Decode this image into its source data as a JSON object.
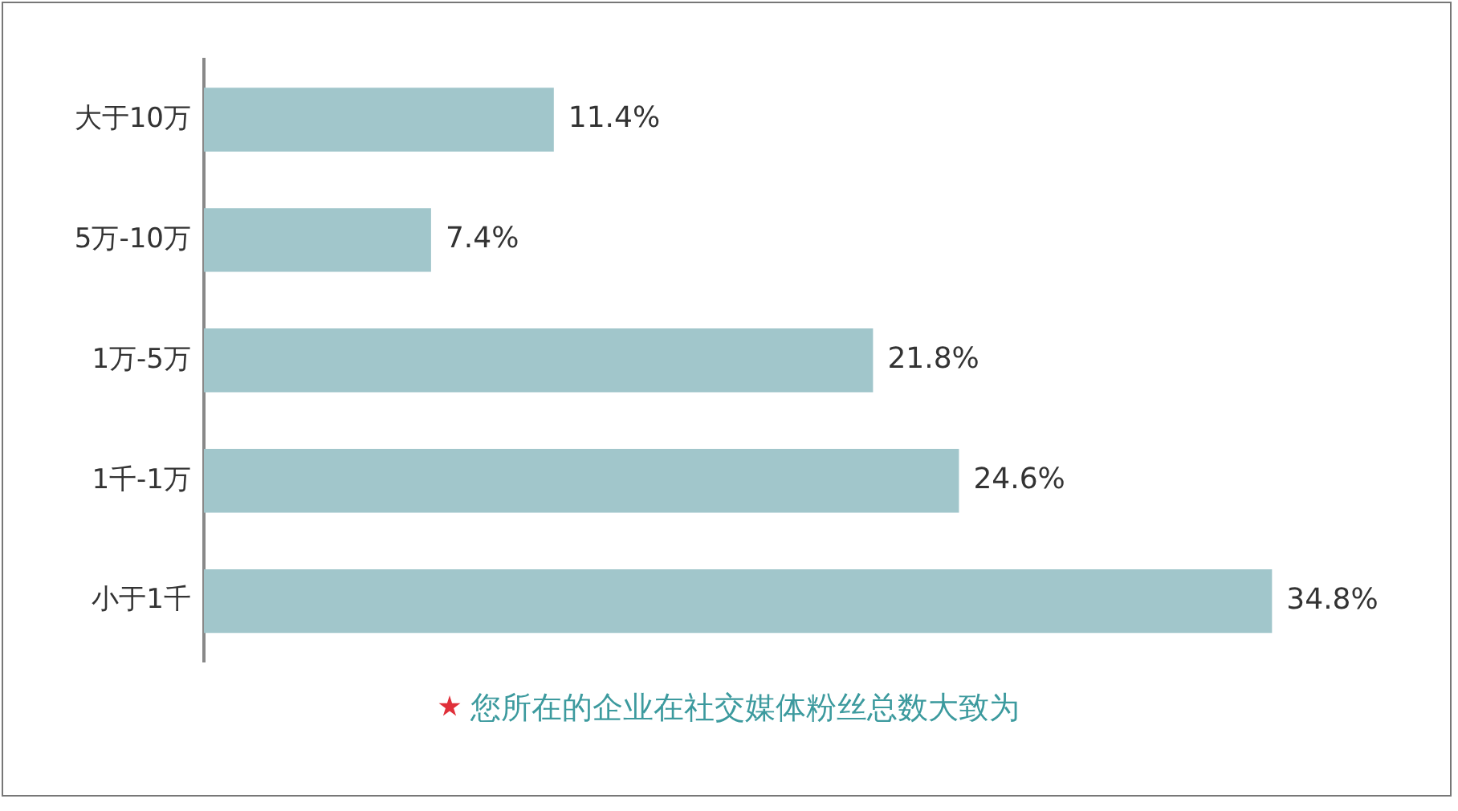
{
  "chart_data": {
    "type": "bar",
    "orientation": "horizontal",
    "categories": [
      "大于10万",
      "5万-10万",
      "1万-5万",
      "1千-1万",
      "小于1千"
    ],
    "values": [
      11.4,
      7.4,
      21.8,
      24.6,
      34.8
    ],
    "value_labels": [
      "11.4%",
      "7.4%",
      "21.8%",
      "24.6%",
      "34.8%"
    ],
    "color": "#a1c6cb",
    "annotations": [
      "您所在的企业在社交媒体粉丝总数大致为"
    ],
    "legend": false
  }
}
